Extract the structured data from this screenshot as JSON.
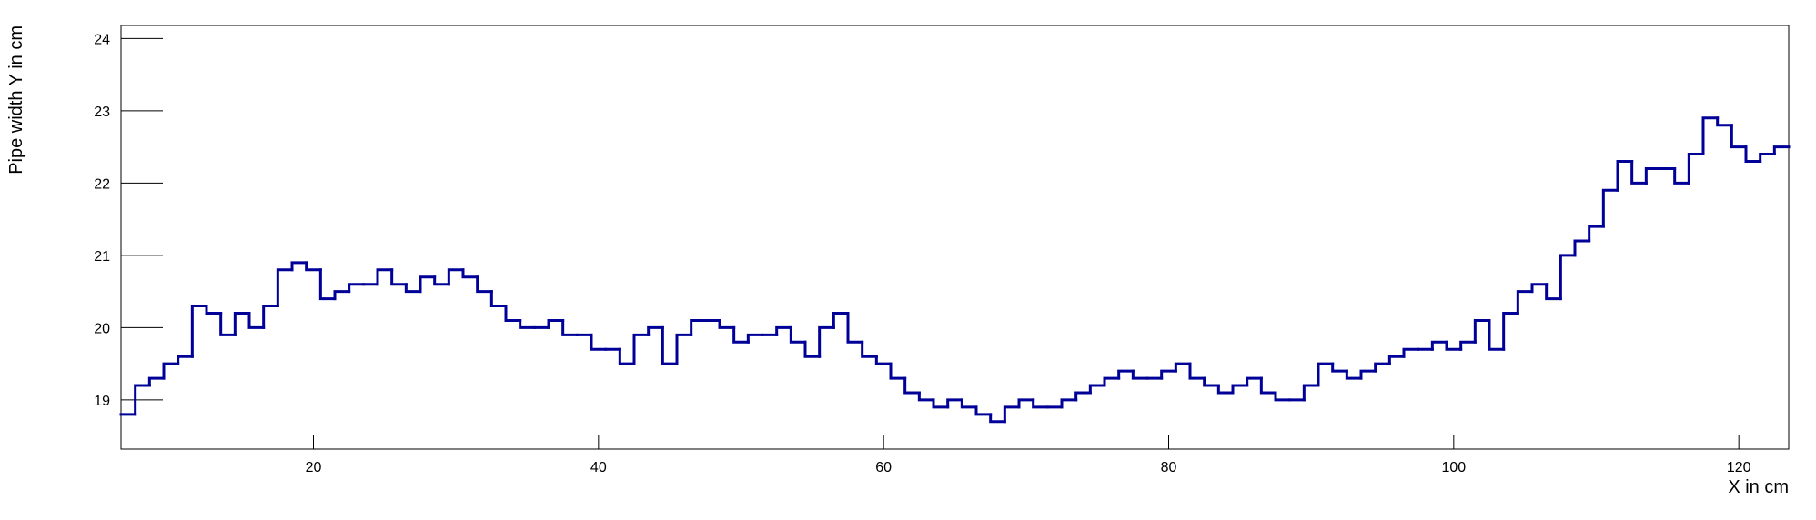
{
  "chart_data": {
    "type": "histogram",
    "x_label": "X in cm",
    "y_label": "Pipe width Y in cm",
    "color": "#000099",
    "xlim": [
      6.5,
      123.5
    ],
    "ylim": [
      18.32,
      24.18
    ],
    "xticks": [
      20,
      40,
      60,
      80,
      100,
      120
    ],
    "yticks": [
      19,
      20,
      21,
      22,
      23,
      24
    ],
    "bins": [
      6.5,
      7.5,
      8.5,
      9.5,
      10.5,
      11.5,
      12.5,
      13.5,
      14.5,
      15.5,
      16.5,
      17.5,
      18.5,
      19.5,
      20.5,
      21.5,
      22.5,
      23.5,
      24.5,
      25.5,
      26.5,
      27.5,
      28.5,
      29.5,
      30.5,
      31.5,
      32.5,
      33.5,
      34.5,
      35.5,
      36.5,
      37.5,
      38.5,
      39.5,
      40.5,
      41.5,
      42.5,
      43.5,
      44.5,
      45.5,
      46.5,
      47.5,
      48.5,
      49.5,
      50.5,
      51.5,
      52.5,
      53.5,
      54.5,
      55.5,
      56.5,
      57.5,
      58.5,
      59.5,
      60.5,
      61.5,
      62.5,
      63.5,
      64.5,
      65.5,
      66.5,
      67.5,
      68.5,
      69.5,
      70.5,
      71.5,
      72.5,
      73.5,
      74.5,
      75.5,
      76.5,
      77.5,
      78.5,
      79.5,
      80.5,
      81.5,
      82.5,
      83.5,
      84.5,
      85.5,
      86.5,
      87.5,
      88.5,
      89.5,
      90.5,
      91.5,
      92.5,
      93.5,
      94.5,
      95.5,
      96.5,
      97.5,
      98.5,
      99.5,
      100.5,
      101.5,
      102.5,
      103.5,
      104.5,
      105.5,
      106.5,
      107.5,
      108.5,
      109.5,
      110.5,
      111.5,
      112.5,
      113.5,
      114.5,
      115.5,
      116.5,
      117.5,
      118.5,
      119.5,
      120.5,
      121.5,
      122.5,
      123.5
    ],
    "values": [
      18.8,
      19.2,
      19.3,
      19.5,
      19.6,
      20.3,
      20.2,
      19.9,
      20.2,
      20.0,
      20.3,
      20.8,
      20.9,
      20.8,
      20.4,
      20.5,
      20.6,
      20.6,
      20.8,
      20.6,
      20.5,
      20.7,
      20.6,
      20.8,
      20.7,
      20.5,
      20.3,
      20.1,
      20.0,
      20.0,
      20.1,
      19.9,
      19.9,
      19.7,
      19.7,
      19.5,
      19.9,
      20.0,
      19.5,
      19.9,
      20.1,
      20.1,
      20.0,
      19.8,
      19.9,
      19.9,
      20.0,
      19.8,
      19.6,
      20.0,
      20.2,
      19.8,
      19.6,
      19.5,
      19.3,
      19.1,
      19.0,
      18.9,
      19.0,
      18.9,
      18.8,
      18.7,
      18.9,
      19.0,
      18.9,
      18.9,
      19.0,
      19.1,
      19.2,
      19.3,
      19.4,
      19.3,
      19.3,
      19.4,
      19.5,
      19.3,
      19.2,
      19.1,
      19.2,
      19.3,
      19.1,
      19.0,
      19.0,
      19.2,
      19.5,
      19.4,
      19.3,
      19.4,
      19.5,
      19.6,
      19.7,
      19.7,
      19.8,
      19.7,
      19.8,
      20.1,
      19.7,
      20.2,
      20.5,
      20.6,
      20.4,
      21.0,
      21.2,
      21.4,
      21.9,
      22.3,
      22.0,
      22.2,
      22.2,
      22.0,
      22.4,
      22.9,
      22.8,
      22.5,
      22.3,
      22.4,
      22.5
    ]
  }
}
